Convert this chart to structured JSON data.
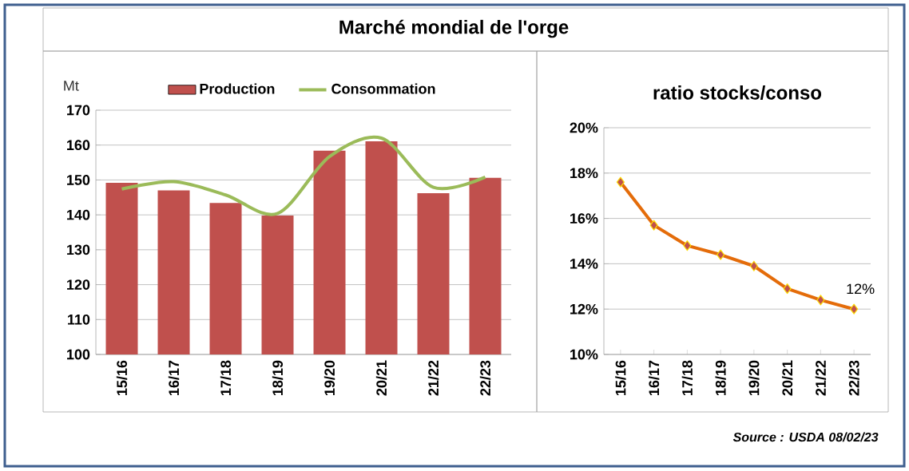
{
  "chart_data": [
    {
      "type": "bar",
      "title": "Marché mondial de l'orge",
      "ylabel": "Mt",
      "categories": [
        "15/16",
        "16/17",
        "17/18",
        "18/19",
        "19/20",
        "20/21",
        "21/22",
        "22/23"
      ],
      "series": [
        {
          "name": "Production",
          "type": "bar",
          "color": "#c0504d",
          "values": [
            149.2,
            147.0,
            143.4,
            139.8,
            158.4,
            161.1,
            146.2,
            150.6
          ]
        },
        {
          "name": "Consommation",
          "type": "line",
          "color": "#9bbb59",
          "marker": "none",
          "values": [
            147.4,
            149.5,
            145.7,
            140.4,
            156.7,
            162.0,
            147.9,
            150.8
          ]
        }
      ],
      "ylim": [
        100,
        170
      ],
      "yticks": [
        100,
        110,
        120,
        130,
        140,
        150,
        160,
        170
      ],
      "grid": "y",
      "legend": "top"
    },
    {
      "type": "line",
      "title": "ratio stocks/conso",
      "categories": [
        "15/16",
        "16/17",
        "17/18",
        "18/19",
        "19/20",
        "20/21",
        "21/22",
        "22/23"
      ],
      "series": [
        {
          "color": "#e46c0a",
          "values": [
            17.6,
            15.7,
            14.8,
            14.4,
            13.9,
            12.9,
            12.4,
            12.0
          ],
          "value_labels": [
            null,
            null,
            null,
            null,
            null,
            null,
            null,
            "12%"
          ]
        }
      ],
      "marker": "diamond",
      "ylim": [
        10,
        20
      ],
      "yticks": [
        {
          "value": 10,
          "label": "10%"
        },
        {
          "value": 12,
          "label": "12%"
        },
        {
          "value": 14,
          "label": "14%"
        },
        {
          "value": 16,
          "label": "16%"
        },
        {
          "value": 18,
          "label": "18%"
        },
        {
          "value": 20,
          "label": "20%"
        }
      ],
      "grid": "y",
      "annotations": [
        "Source : USDA 08/02/23"
      ]
    }
  ]
}
